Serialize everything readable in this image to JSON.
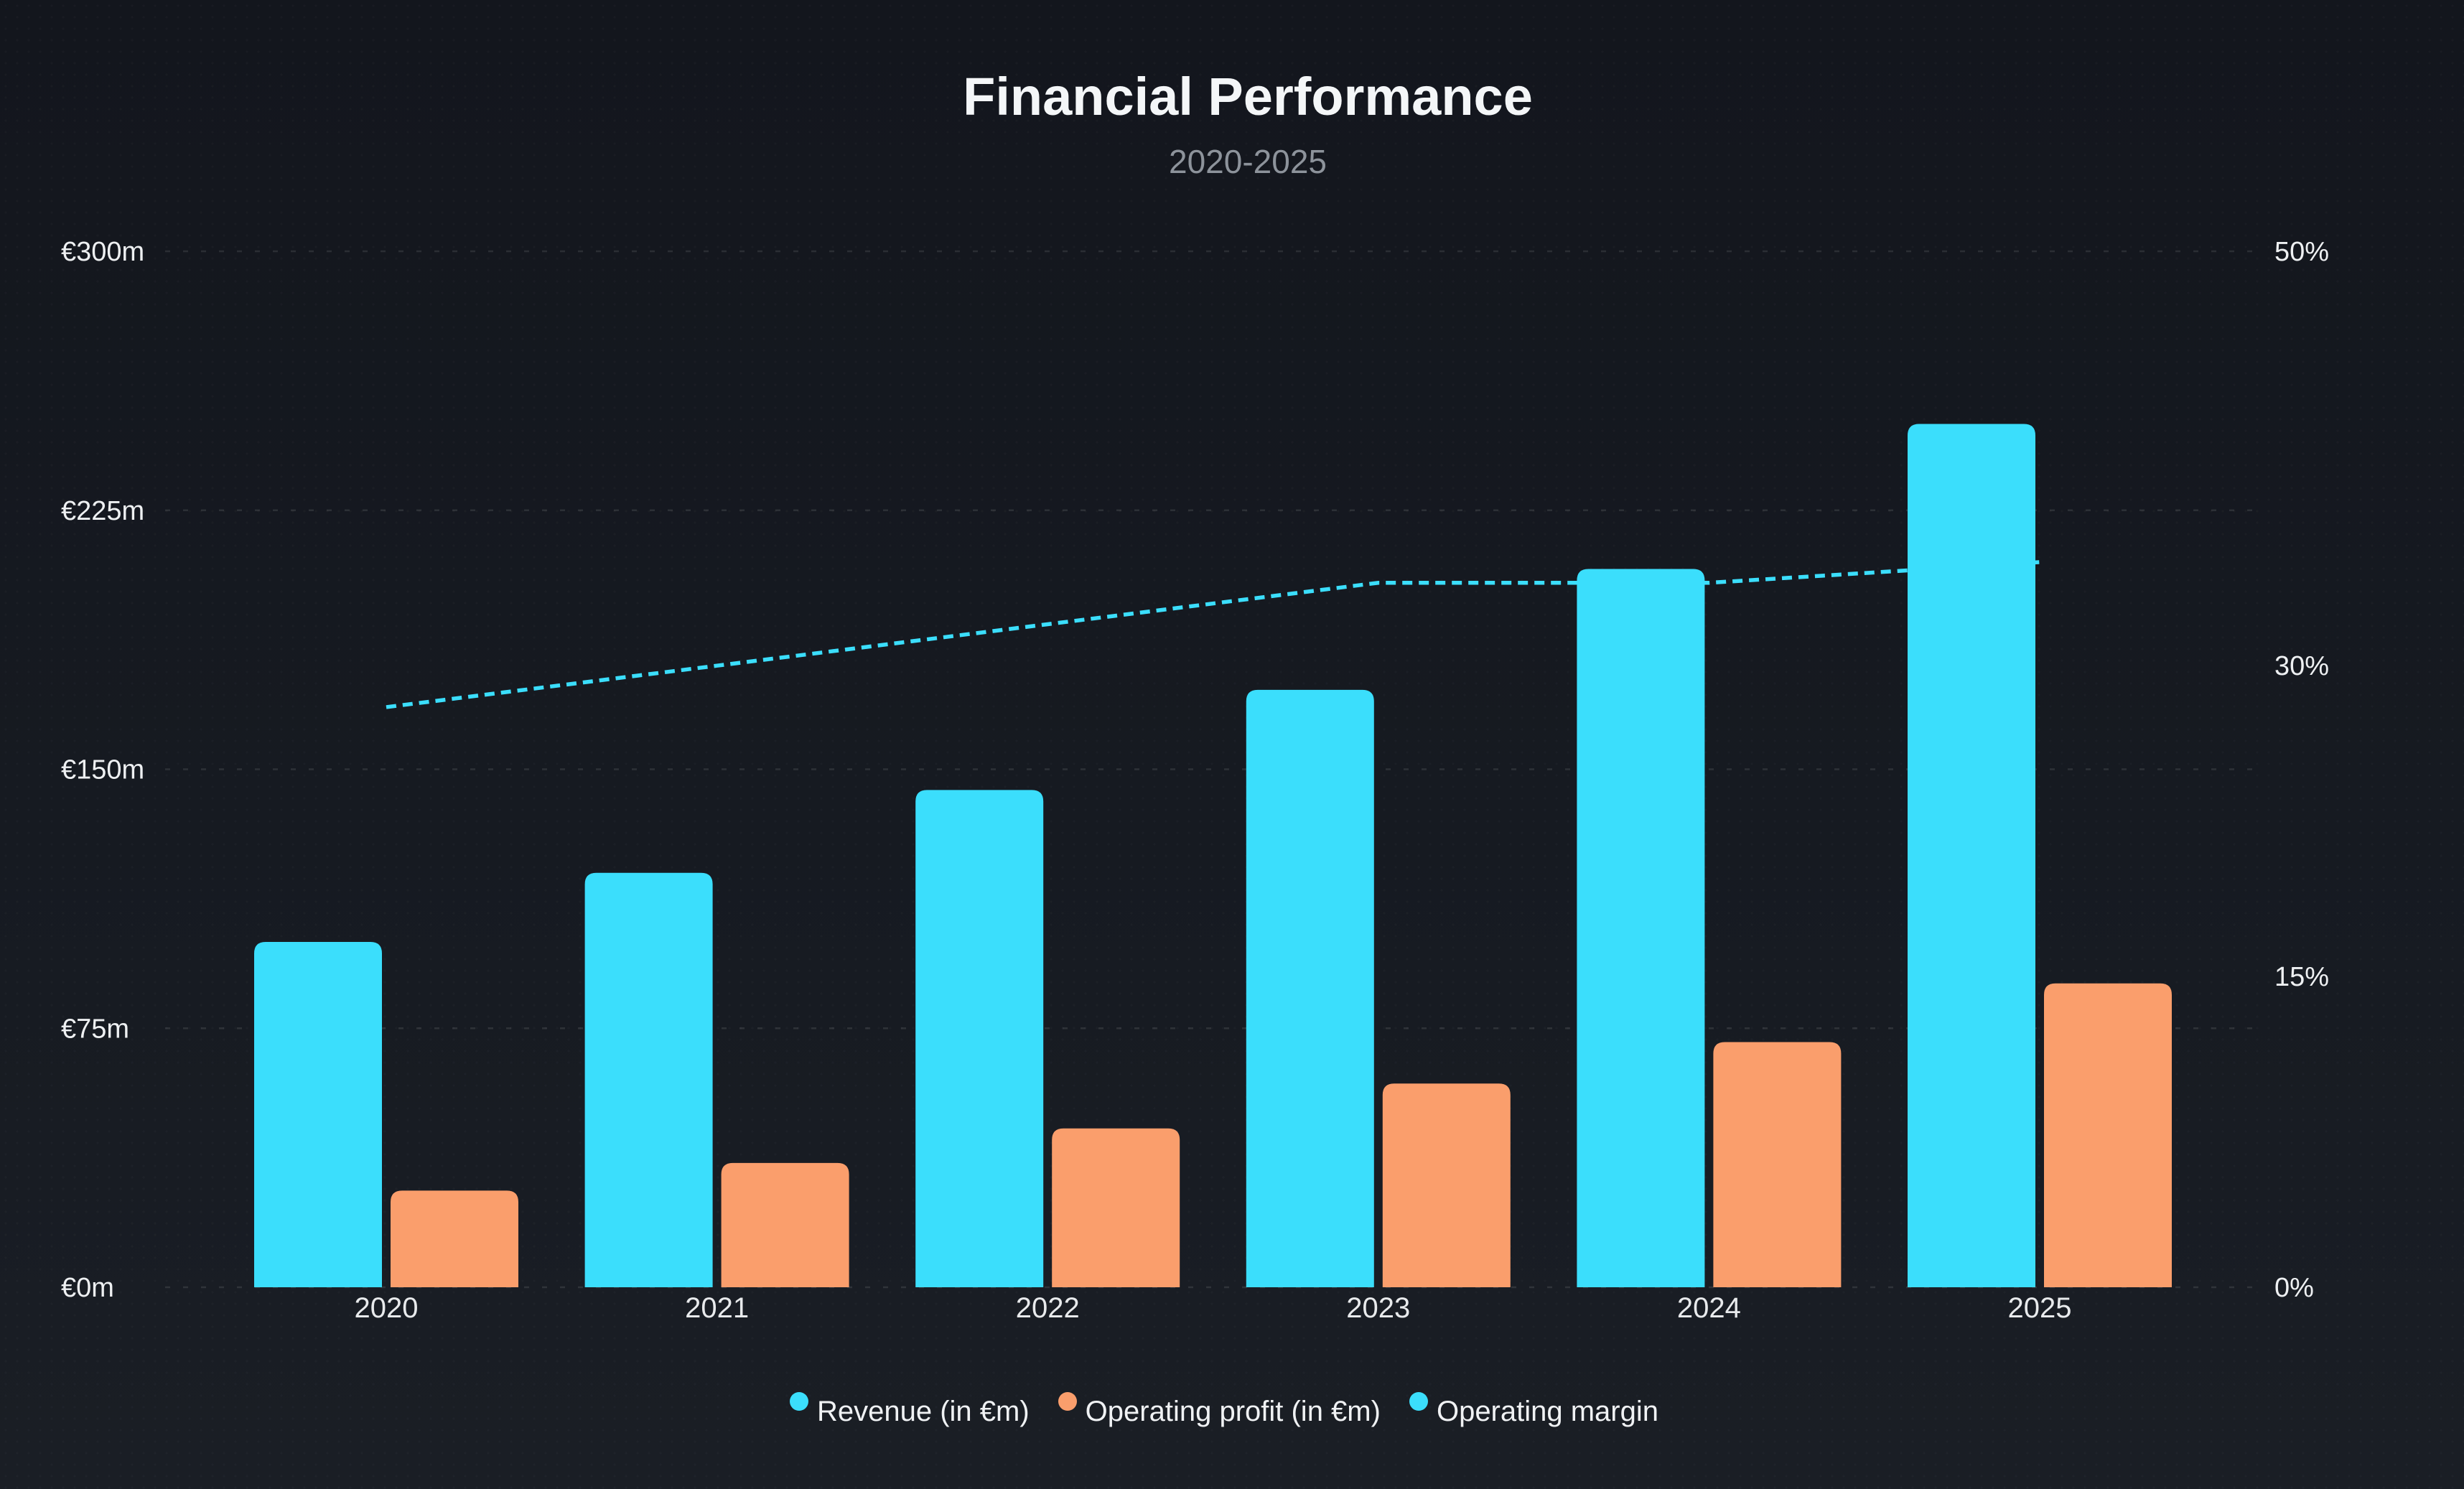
{
  "chart_data": {
    "type": "combo-bar-line",
    "title": "Financial Performance",
    "subtitle": "2020-2025",
    "categories": [
      "2020",
      "2021",
      "2022",
      "2023",
      "2024",
      "2025"
    ],
    "series": [
      {
        "id": "revenue",
        "name": "Revenue (in €m)",
        "type": "bar",
        "axis": "left",
        "color": "#3bdefc",
        "values": [
          100,
          120,
          144,
          173,
          208,
          250
        ]
      },
      {
        "id": "operating_profit",
        "name": "Operating profit (in €m)",
        "type": "bar",
        "axis": "left",
        "color": "#fa9e6c",
        "values": [
          28,
          36,
          46,
          59,
          71,
          88
        ]
      },
      {
        "id": "operating_margin",
        "name": "Operating margin",
        "type": "line",
        "line_style": "dashed",
        "axis": "right",
        "unit": "%",
        "color": "#3bdefc",
        "values": [
          28,
          30,
          32,
          34,
          34,
          35
        ]
      }
    ],
    "left_axis": {
      "unit": "€m",
      "max": 300,
      "ticks": [
        {
          "label": "€0m",
          "value": 0
        },
        {
          "label": "€75m",
          "value": 75
        },
        {
          "label": "€150m",
          "value": 150
        },
        {
          "label": "€225m",
          "value": 225
        },
        {
          "label": "€300m",
          "value": 300
        }
      ]
    },
    "right_axis": {
      "unit": "%",
      "max": 50,
      "ticks": [
        {
          "label": "0%",
          "value": 0
        },
        {
          "label": "15%",
          "value": 15
        },
        {
          "label": "30%",
          "value": 30
        },
        {
          "label": "50%",
          "value": 50
        }
      ]
    },
    "legend": {
      "position": "bottom",
      "items": [
        {
          "label": "Revenue (in €m)",
          "color": "#3bdefc"
        },
        {
          "label": "Operating profit (in €m)",
          "color": "#fa9e6c"
        },
        {
          "label": "Operating margin",
          "color": "#3bdefc"
        }
      ]
    },
    "grid": {
      "horizontal_lines": "dashed",
      "vertical_lines": "none"
    }
  },
  "colors": {
    "background_top": "#13161d",
    "background_bottom": "#1a1e25",
    "title": "#f4f6f8",
    "subtitle": "#8d939b",
    "axis_label": "#eef0f2",
    "category_label": "#e8eaec",
    "gridline": "rgba(255,255,255,0.10)"
  }
}
